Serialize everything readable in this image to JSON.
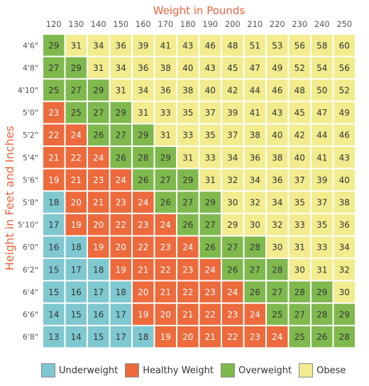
{
  "chart_data": {
    "type": "heatmap",
    "title": "",
    "xlabel": "Weight in Pounds",
    "ylabel": "Height in Feet and Inches",
    "x": [
      "120",
      "130",
      "140",
      "150",
      "160",
      "170",
      "180",
      "190",
      "200",
      "210",
      "220",
      "230",
      "240",
      "250"
    ],
    "y": [
      "4'6\"",
      "4'8\"",
      "4'10\"",
      "5'0\"",
      "5'2\"",
      "5'4\"",
      "5'6\"",
      "5'8\"",
      "5'10\"",
      "6'0\"",
      "6'2\"",
      "6'4\"",
      "6'6\"",
      "6'8\""
    ],
    "values": [
      [
        29,
        31,
        34,
        36,
        39,
        41,
        43,
        46,
        48,
        51,
        53,
        56,
        58,
        60
      ],
      [
        27,
        29,
        31,
        34,
        36,
        38,
        40,
        43,
        45,
        47,
        49,
        52,
        54,
        56
      ],
      [
        25,
        27,
        29,
        31,
        34,
        36,
        38,
        40,
        42,
        44,
        46,
        48,
        50,
        52
      ],
      [
        23,
        25,
        27,
        29,
        31,
        33,
        35,
        37,
        39,
        41,
        43,
        45,
        47,
        49
      ],
      [
        22,
        24,
        26,
        27,
        29,
        31,
        33,
        35,
        37,
        38,
        40,
        42,
        44,
        46
      ],
      [
        21,
        22,
        24,
        26,
        28,
        29,
        31,
        33,
        34,
        36,
        38,
        40,
        41,
        43
      ],
      [
        19,
        21,
        23,
        24,
        26,
        27,
        29,
        31,
        32,
        34,
        36,
        37,
        39,
        40
      ],
      [
        18,
        20,
        21,
        23,
        24,
        26,
        27,
        29,
        30,
        32,
        34,
        35,
        37,
        38
      ],
      [
        17,
        19,
        20,
        22,
        23,
        24,
        26,
        27,
        29,
        30,
        32,
        33,
        35,
        36
      ],
      [
        16,
        18,
        19,
        20,
        22,
        23,
        24,
        26,
        27,
        28,
        30,
        31,
        33,
        34
      ],
      [
        15,
        17,
        18,
        19,
        21,
        22,
        23,
        24,
        26,
        27,
        28,
        30,
        31,
        32
      ],
      [
        15,
        16,
        17,
        18,
        20,
        21,
        22,
        23,
        24,
        26,
        27,
        28,
        29,
        30
      ],
      [
        14,
        15,
        16,
        17,
        19,
        20,
        21,
        22,
        23,
        24,
        25,
        27,
        28,
        29
      ],
      [
        13,
        14,
        15,
        17,
        18,
        19,
        20,
        21,
        22,
        23,
        24,
        25,
        26,
        28
      ]
    ],
    "categories": [
      {
        "name": "Underweight",
        "color": "#7fc8d0"
      },
      {
        "name": "Healthy Weight",
        "color": "#ec6a3c"
      },
      {
        "name": "Overweight",
        "color": "#7fb94e"
      },
      {
        "name": "Obese",
        "color": "#f2ec8e"
      }
    ],
    "cell_category": [
      [
        2,
        3,
        3,
        3,
        3,
        3,
        3,
        3,
        3,
        3,
        3,
        3,
        3,
        3
      ],
      [
        2,
        2,
        3,
        3,
        3,
        3,
        3,
        3,
        3,
        3,
        3,
        3,
        3,
        3
      ],
      [
        2,
        2,
        2,
        3,
        3,
        3,
        3,
        3,
        3,
        3,
        3,
        3,
        3,
        3
      ],
      [
        1,
        2,
        2,
        2,
        3,
        3,
        3,
        3,
        3,
        3,
        3,
        3,
        3,
        3
      ],
      [
        1,
        1,
        2,
        2,
        2,
        3,
        3,
        3,
        3,
        3,
        3,
        3,
        3,
        3
      ],
      [
        1,
        1,
        1,
        2,
        2,
        2,
        3,
        3,
        3,
        3,
        3,
        3,
        3,
        3
      ],
      [
        1,
        1,
        1,
        1,
        2,
        2,
        2,
        3,
        3,
        3,
        3,
        3,
        3,
        3
      ],
      [
        0,
        1,
        1,
        1,
        1,
        2,
        2,
        2,
        3,
        3,
        3,
        3,
        3,
        3
      ],
      [
        0,
        1,
        1,
        1,
        1,
        1,
        2,
        2,
        3,
        3,
        3,
        3,
        3,
        3
      ],
      [
        0,
        0,
        1,
        1,
        1,
        1,
        1,
        2,
        2,
        2,
        3,
        3,
        3,
        3
      ],
      [
        0,
        0,
        0,
        1,
        1,
        1,
        1,
        1,
        2,
        2,
        2,
        3,
        3,
        3
      ],
      [
        0,
        0,
        0,
        0,
        1,
        1,
        1,
        1,
        1,
        2,
        2,
        2,
        2,
        3
      ],
      [
        0,
        0,
        0,
        0,
        1,
        1,
        1,
        1,
        1,
        1,
        2,
        2,
        2,
        2
      ],
      [
        0,
        0,
        0,
        0,
        0,
        1,
        1,
        1,
        1,
        1,
        1,
        2,
        2,
        2
      ]
    ],
    "colors": {
      "axis_title": "#e8643c",
      "tick_label": "#555555",
      "cell_text": "#333333",
      "cell_text_light": "#ffffff",
      "cell_border": "#ffffff"
    },
    "legend_position": "bottom"
  }
}
